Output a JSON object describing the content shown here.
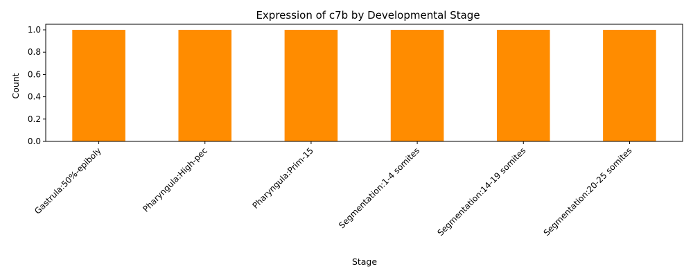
{
  "chart_data": {
    "type": "bar",
    "title": "Expression of c7b by Developmental Stage",
    "xlabel": "Stage",
    "ylabel": "Count",
    "categories": [
      "Gastrula:50%-epiboly",
      "Pharyngula:High-pec",
      "Pharyngula:Prim-15",
      "Segmentation:1-4 somites",
      "Segmentation:14-19 somites",
      "Segmentation:20-25 somites"
    ],
    "values": [
      1,
      1,
      1,
      1,
      1,
      1
    ],
    "ylim": [
      0,
      1.05
    ],
    "yticks": [
      "0.0",
      "0.2",
      "0.4",
      "0.6",
      "0.8",
      "1.0"
    ],
    "ytick_values": [
      0,
      0.2,
      0.4,
      0.6,
      0.8,
      1.0
    ],
    "grid": false,
    "bar_color": "#ff8c00"
  }
}
